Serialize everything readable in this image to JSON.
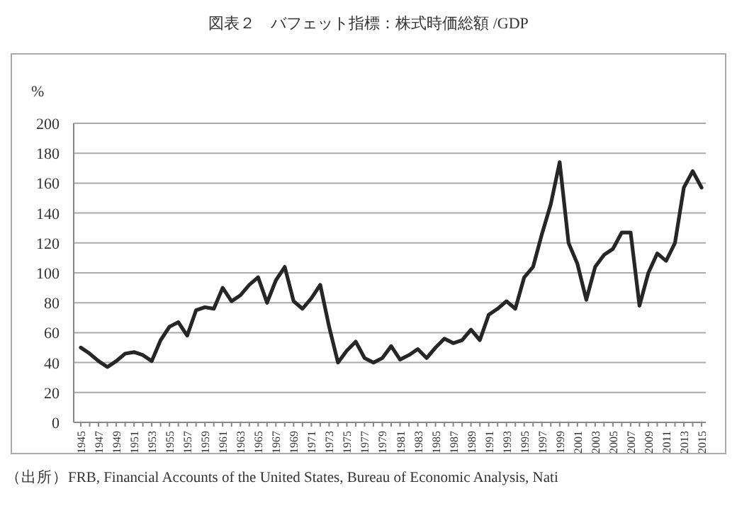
{
  "chart_data": {
    "type": "line",
    "title": "図表２　バフェット指標：株式時価総額 /GDP",
    "ylabel": "%",
    "categories": [
      "1945",
      null,
      "1947",
      null,
      "1949",
      null,
      "1951",
      null,
      "1953",
      null,
      "1955",
      null,
      "1957",
      null,
      "1959",
      null,
      "1961",
      null,
      "1963",
      null,
      "1965",
      null,
      "1967",
      null,
      "1969",
      null,
      "1971",
      null,
      "1973",
      null,
      "1975",
      null,
      "1977",
      null,
      "1979",
      null,
      "1981",
      null,
      "1983",
      null,
      "1985",
      null,
      "1987",
      null,
      "1989",
      null,
      "1991",
      null,
      "1993",
      null,
      "1995",
      null,
      "1997",
      null,
      "1999",
      null,
      "2001",
      null,
      "2003",
      null,
      "2005",
      null,
      "2007",
      null,
      "2009",
      null,
      "2011",
      null,
      "2013",
      null,
      "2015"
    ],
    "series": [
      {
        "color": "#262626",
        "values": [
          50,
          46,
          41,
          37,
          41,
          46,
          47,
          45,
          41,
          55,
          64,
          67,
          58,
          75,
          77,
          76,
          90,
          81,
          85,
          92,
          97,
          80,
          95,
          104,
          81,
          76,
          83,
          92,
          64,
          40,
          48,
          54,
          43,
          40,
          43,
          51,
          42,
          45,
          49,
          43,
          50,
          56,
          53,
          55,
          62,
          55,
          72,
          76,
          81,
          76,
          97,
          104,
          126,
          146,
          174,
          120,
          106,
          82,
          104,
          112,
          116,
          127,
          127,
          78,
          100,
          113,
          108,
          120,
          157,
          168,
          157
        ]
      }
    ],
    "ylim": [
      0,
      200
    ],
    "yticks": [
      0,
      20,
      40,
      60,
      80,
      100,
      120,
      140,
      160,
      180,
      200
    ],
    "grid": "y",
    "marker": "none",
    "line_style": "solid",
    "annotations": [
      "（出所）FRB, Financial Accounts of the United States, Bureau of Economic Analysis, Nati"
    ]
  }
}
